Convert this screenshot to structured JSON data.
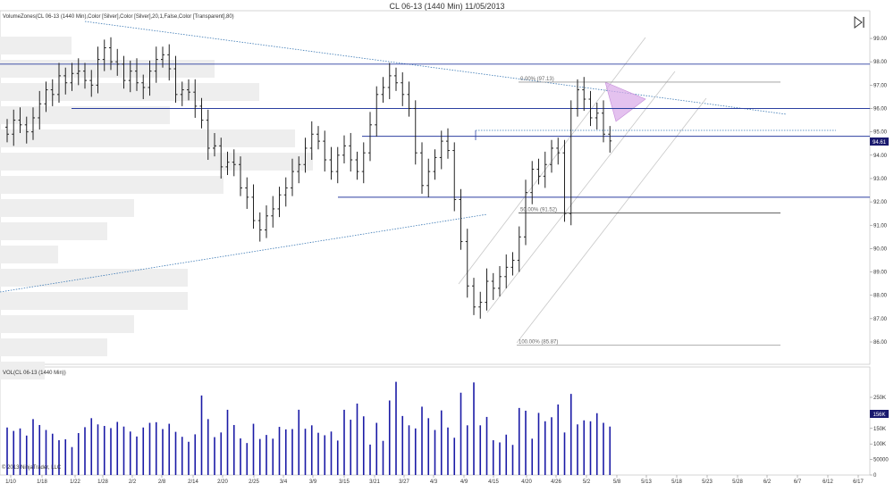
{
  "title": "CL 06-13 (1440 Min)  11/05/2013",
  "price_panel_label": "VolumeZones(CL 06-13 (1440 Min),Color [Silver],Color [Silver],20,1,False,Color [Transparent],80)",
  "volume_panel_label": "VOL(CL 06-13 (1440 Min))",
  "copyright": "© 2013 NinjaTrader, LLC",
  "price_badge": "94.61",
  "volume_badge": "156K",
  "fib_labels": [
    "0.00% (97.13)",
    "50.00% (91.52)",
    "100.00% (85.87)"
  ],
  "colors": {
    "level_line": "#2b3fa0",
    "trend_line": "#3a78b4",
    "channel": "#c7c7c7",
    "volume_bar": "#1a1aa6",
    "bar": "#222222",
    "zone": "#eeeeee",
    "triangle": "#d8a8e8",
    "badge_bg": "#1a1a6e"
  },
  "icons": [
    "play-end-icon"
  ],
  "chart_data": [
    {
      "type": "ohlc",
      "title": "CL 06-13 (1440 Min)  11/05/2013",
      "x_tick_labels": [
        "1/10",
        "1/18",
        "1/22",
        "1/28",
        "2/2",
        "2/8",
        "2/14",
        "2/20",
        "2/25",
        "3/4",
        "3/9",
        "3/15",
        "3/21",
        "3/27",
        "4/3",
        "4/9",
        "4/15",
        "4/20",
        "4/26",
        "5/2",
        "5/8",
        "5/13",
        "5/18",
        "5/23",
        "5/28",
        "6/2",
        "6/7",
        "6/12",
        "6/17"
      ],
      "y_tick_labels": [
        "86.00",
        "87.00",
        "88.00",
        "89.00",
        "90.00",
        "91.00",
        "92.00",
        "93.00",
        "94.00",
        "95.00",
        "96.00",
        "97.00",
        "98.00",
        "99.00"
      ],
      "ylim": [
        85.75,
        99.65
      ],
      "last_price": 94.61,
      "horizontal_levels": [
        97.9,
        96.0,
        94.81,
        92.2
      ],
      "fib_levels": [
        97.13,
        91.52,
        85.87
      ],
      "close": [
        94.9,
        95.5,
        95.3,
        95.0,
        95.6,
        96.2,
        96.8,
        96.6,
        97.4,
        97.1,
        97.5,
        97.6,
        97.2,
        97.0,
        98.1,
        98.6,
        98.0,
        97.9,
        97.2,
        97.6,
        97.1,
        96.9,
        97.6,
        98.1,
        98.3,
        97.7,
        96.6,
        96.8,
        96.7,
        96.1,
        95.5,
        94.3,
        94.4,
        93.5,
        93.7,
        93.6,
        92.6,
        92.2,
        91.2,
        90.8,
        91.4,
        91.7,
        92.3,
        92.6,
        93.3,
        93.6,
        94.3,
        94.9,
        94.6,
        93.8,
        93.3,
        94.0,
        94.4,
        93.8,
        93.3,
        94.1,
        95.3,
        96.6,
        96.9,
        97.4,
        97.1,
        96.6,
        96.0,
        94.1,
        92.7,
        93.3,
        93.9,
        94.6,
        94.2,
        92.1,
        90.3,
        88.4,
        87.5,
        87.7,
        88.6,
        88.3,
        88.8,
        89.2,
        89.5,
        90.5,
        92.4,
        93.4,
        93.1,
        93.6,
        94.3,
        94.1,
        91.5,
        96.0,
        96.8,
        96.4,
        95.6,
        95.8,
        94.9,
        94.61
      ],
      "volume_k": [
        153,
        142,
        150,
        127,
        180,
        161,
        145,
        133,
        112,
        115,
        90,
        135,
        154,
        183,
        163,
        158,
        151,
        171,
        156,
        140,
        124,
        153,
        168,
        170,
        148,
        165,
        139,
        123,
        107,
        131,
        256,
        180,
        122,
        137,
        210,
        161,
        118,
        103,
        165,
        116,
        129,
        117,
        155,
        147,
        148,
        210,
        149,
        160,
        136,
        128,
        140,
        111,
        210,
        178,
        230,
        189,
        98,
        168,
        110,
        240,
        300,
        190,
        160,
        150,
        220,
        183,
        145,
        208,
        153,
        120,
        265,
        160,
        298,
        160,
        187,
        112,
        105,
        130,
        97,
        216,
        207,
        117,
        200,
        173,
        186,
        227,
        137,
        261,
        163,
        176,
        173,
        199,
        168,
        156
      ],
      "volume_ticks": [
        "250K",
        "200K",
        "150K",
        "100K",
        "50000",
        "0"
      ],
      "current_volume": "156K"
    }
  ]
}
